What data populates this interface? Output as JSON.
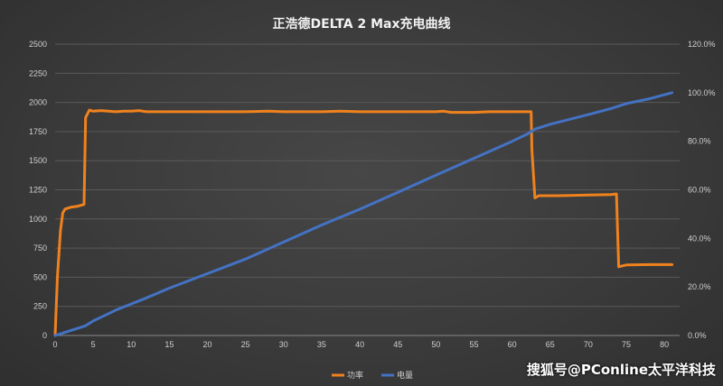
{
  "chart_data": {
    "type": "line",
    "title": "正浩德DELTA 2 Max充电曲线",
    "xlabel": "",
    "ylabel": "",
    "xlim": [
      0,
      82
    ],
    "ylim": [
      0,
      2500
    ],
    "y2lim": [
      0,
      1.2
    ],
    "grid": "horizontal",
    "legend": "bottom-center",
    "x_ticks": [
      0,
      5,
      10,
      15,
      20,
      25,
      30,
      35,
      40,
      45,
      50,
      55,
      60,
      65,
      70,
      75,
      80
    ],
    "y_ticks": [
      0,
      250,
      500,
      750,
      1000,
      1250,
      1500,
      1750,
      2000,
      2250,
      2500
    ],
    "y2_ticks": [
      "0.0%",
      "20.0%",
      "40.0%",
      "60.0%",
      "80.0%",
      "100.0%",
      "120.0%"
    ],
    "series": [
      {
        "name": "功率",
        "axis": "left",
        "color": "#f0821e",
        "points": [
          [
            0,
            0
          ],
          [
            0.3,
            500
          ],
          [
            0.7,
            900
          ],
          [
            1,
            1050
          ],
          [
            1.3,
            1085
          ],
          [
            2,
            1100
          ],
          [
            3,
            1110
          ],
          [
            3.8,
            1125
          ],
          [
            4,
            1870
          ],
          [
            4.5,
            1935
          ],
          [
            5,
            1925
          ],
          [
            6,
            1930
          ],
          [
            7,
            1925
          ],
          [
            8,
            1920
          ],
          [
            9,
            1925
          ],
          [
            10,
            1925
          ],
          [
            11,
            1930
          ],
          [
            12,
            1920
          ],
          [
            15,
            1920
          ],
          [
            20,
            1920
          ],
          [
            25,
            1920
          ],
          [
            28,
            1925
          ],
          [
            30,
            1920
          ],
          [
            35,
            1920
          ],
          [
            37.5,
            1925
          ],
          [
            40,
            1920
          ],
          [
            45,
            1920
          ],
          [
            50,
            1920
          ],
          [
            51,
            1925
          ],
          [
            52,
            1915
          ],
          [
            55,
            1915
          ],
          [
            57,
            1920
          ],
          [
            60,
            1920
          ],
          [
            62.5,
            1920
          ],
          [
            62.6,
            1600
          ],
          [
            63,
            1180
          ],
          [
            63.5,
            1200
          ],
          [
            66,
            1200
          ],
          [
            70,
            1205
          ],
          [
            73,
            1210
          ],
          [
            73.7,
            1215
          ],
          [
            74,
            590
          ],
          [
            75,
            605
          ],
          [
            78,
            608
          ],
          [
            81,
            608
          ]
        ]
      },
      {
        "name": "电量",
        "axis": "right",
        "color": "#4472c4",
        "points": [
          [
            0,
            0
          ],
          [
            1,
            0.01
          ],
          [
            2,
            0.02
          ],
          [
            3,
            0.03
          ],
          [
            4,
            0.04
          ],
          [
            5,
            0.06
          ],
          [
            6,
            0.075
          ],
          [
            7,
            0.09
          ],
          [
            8,
            0.105
          ],
          [
            10,
            0.13
          ],
          [
            12,
            0.155
          ],
          [
            15,
            0.195
          ],
          [
            20,
            0.255
          ],
          [
            25,
            0.315
          ],
          [
            30,
            0.385
          ],
          [
            35,
            0.455
          ],
          [
            40,
            0.52
          ],
          [
            45,
            0.59
          ],
          [
            50,
            0.66
          ],
          [
            55,
            0.73
          ],
          [
            60,
            0.8
          ],
          [
            62,
            0.83
          ],
          [
            63,
            0.85
          ],
          [
            65,
            0.87
          ],
          [
            70,
            0.91
          ],
          [
            73,
            0.935
          ],
          [
            75,
            0.955
          ],
          [
            78,
            0.975
          ],
          [
            81,
            1.0
          ]
        ]
      }
    ]
  },
  "watermark": "搜狐号@PConline太平洋科技"
}
